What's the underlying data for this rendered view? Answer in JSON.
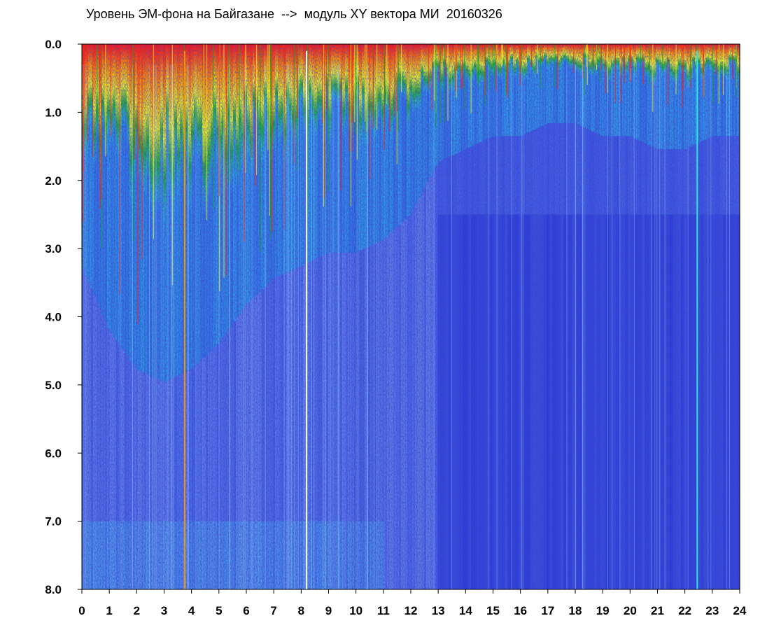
{
  "chart_data": {
    "type": "heatmap",
    "title": "Уровень ЭМ-фона на Байгазане  -->  модуль XY вектора МИ  20160326",
    "xlabel": "",
    "ylabel": "",
    "xlim": [
      0,
      24
    ],
    "ylim": [
      0,
      8
    ],
    "y_axis_direction": "top-to-bottom",
    "x_ticks": [
      "0",
      "1",
      "2",
      "3",
      "4",
      "5",
      "6",
      "7",
      "8",
      "9",
      "10",
      "11",
      "12",
      "13",
      "14",
      "15",
      "16",
      "17",
      "18",
      "19",
      "20",
      "21",
      "22",
      "23",
      "24"
    ],
    "y_ticks": [
      "0.0",
      "1.0",
      "2.0",
      "3.0",
      "4.0",
      "5.0",
      "6.0",
      "7.0",
      "8.0"
    ],
    "grid": false,
    "legend": "none",
    "colormap": [
      "#1010d8",
      "#4a6cf0",
      "#7da0f2",
      "#28e8f0",
      "#10a818",
      "#f0f020",
      "#ff8c00",
      "#ff1010"
    ],
    "background_level_color": "#3550e0",
    "intensity_profile": [
      {
        "x": 0,
        "active_depth": 1.5
      },
      {
        "x": 1,
        "active_depth": 2.0
      },
      {
        "x": 2,
        "active_depth": 2.3
      },
      {
        "x": 3,
        "active_depth": 2.4
      },
      {
        "x": 4,
        "active_depth": 2.3
      },
      {
        "x": 5,
        "active_depth": 2.1
      },
      {
        "x": 6,
        "active_depth": 1.8
      },
      {
        "x": 7,
        "active_depth": 1.6
      },
      {
        "x": 8,
        "active_depth": 1.5
      },
      {
        "x": 9,
        "active_depth": 1.4
      },
      {
        "x": 10,
        "active_depth": 1.4
      },
      {
        "x": 11,
        "active_depth": 1.3
      },
      {
        "x": 12,
        "active_depth": 1.1
      },
      {
        "x": 13,
        "active_depth": 0.7
      },
      {
        "x": 14,
        "active_depth": 0.6
      },
      {
        "x": 15,
        "active_depth": 0.5
      },
      {
        "x": 16,
        "active_depth": 0.5
      },
      {
        "x": 17,
        "active_depth": 0.4
      },
      {
        "x": 18,
        "active_depth": 0.4
      },
      {
        "x": 19,
        "active_depth": 0.5
      },
      {
        "x": 20,
        "active_depth": 0.5
      },
      {
        "x": 21,
        "active_depth": 0.6
      },
      {
        "x": 22,
        "active_depth": 0.6
      },
      {
        "x": 23,
        "active_depth": 0.5
      },
      {
        "x": 24,
        "active_depth": 0.5
      }
    ],
    "vertical_streaks": [
      {
        "x": 3.75,
        "color": "#ff8c00"
      },
      {
        "x": 8.2,
        "color": "#ffffff"
      },
      {
        "x": 22.45,
        "color": "#28e8f0"
      }
    ]
  }
}
